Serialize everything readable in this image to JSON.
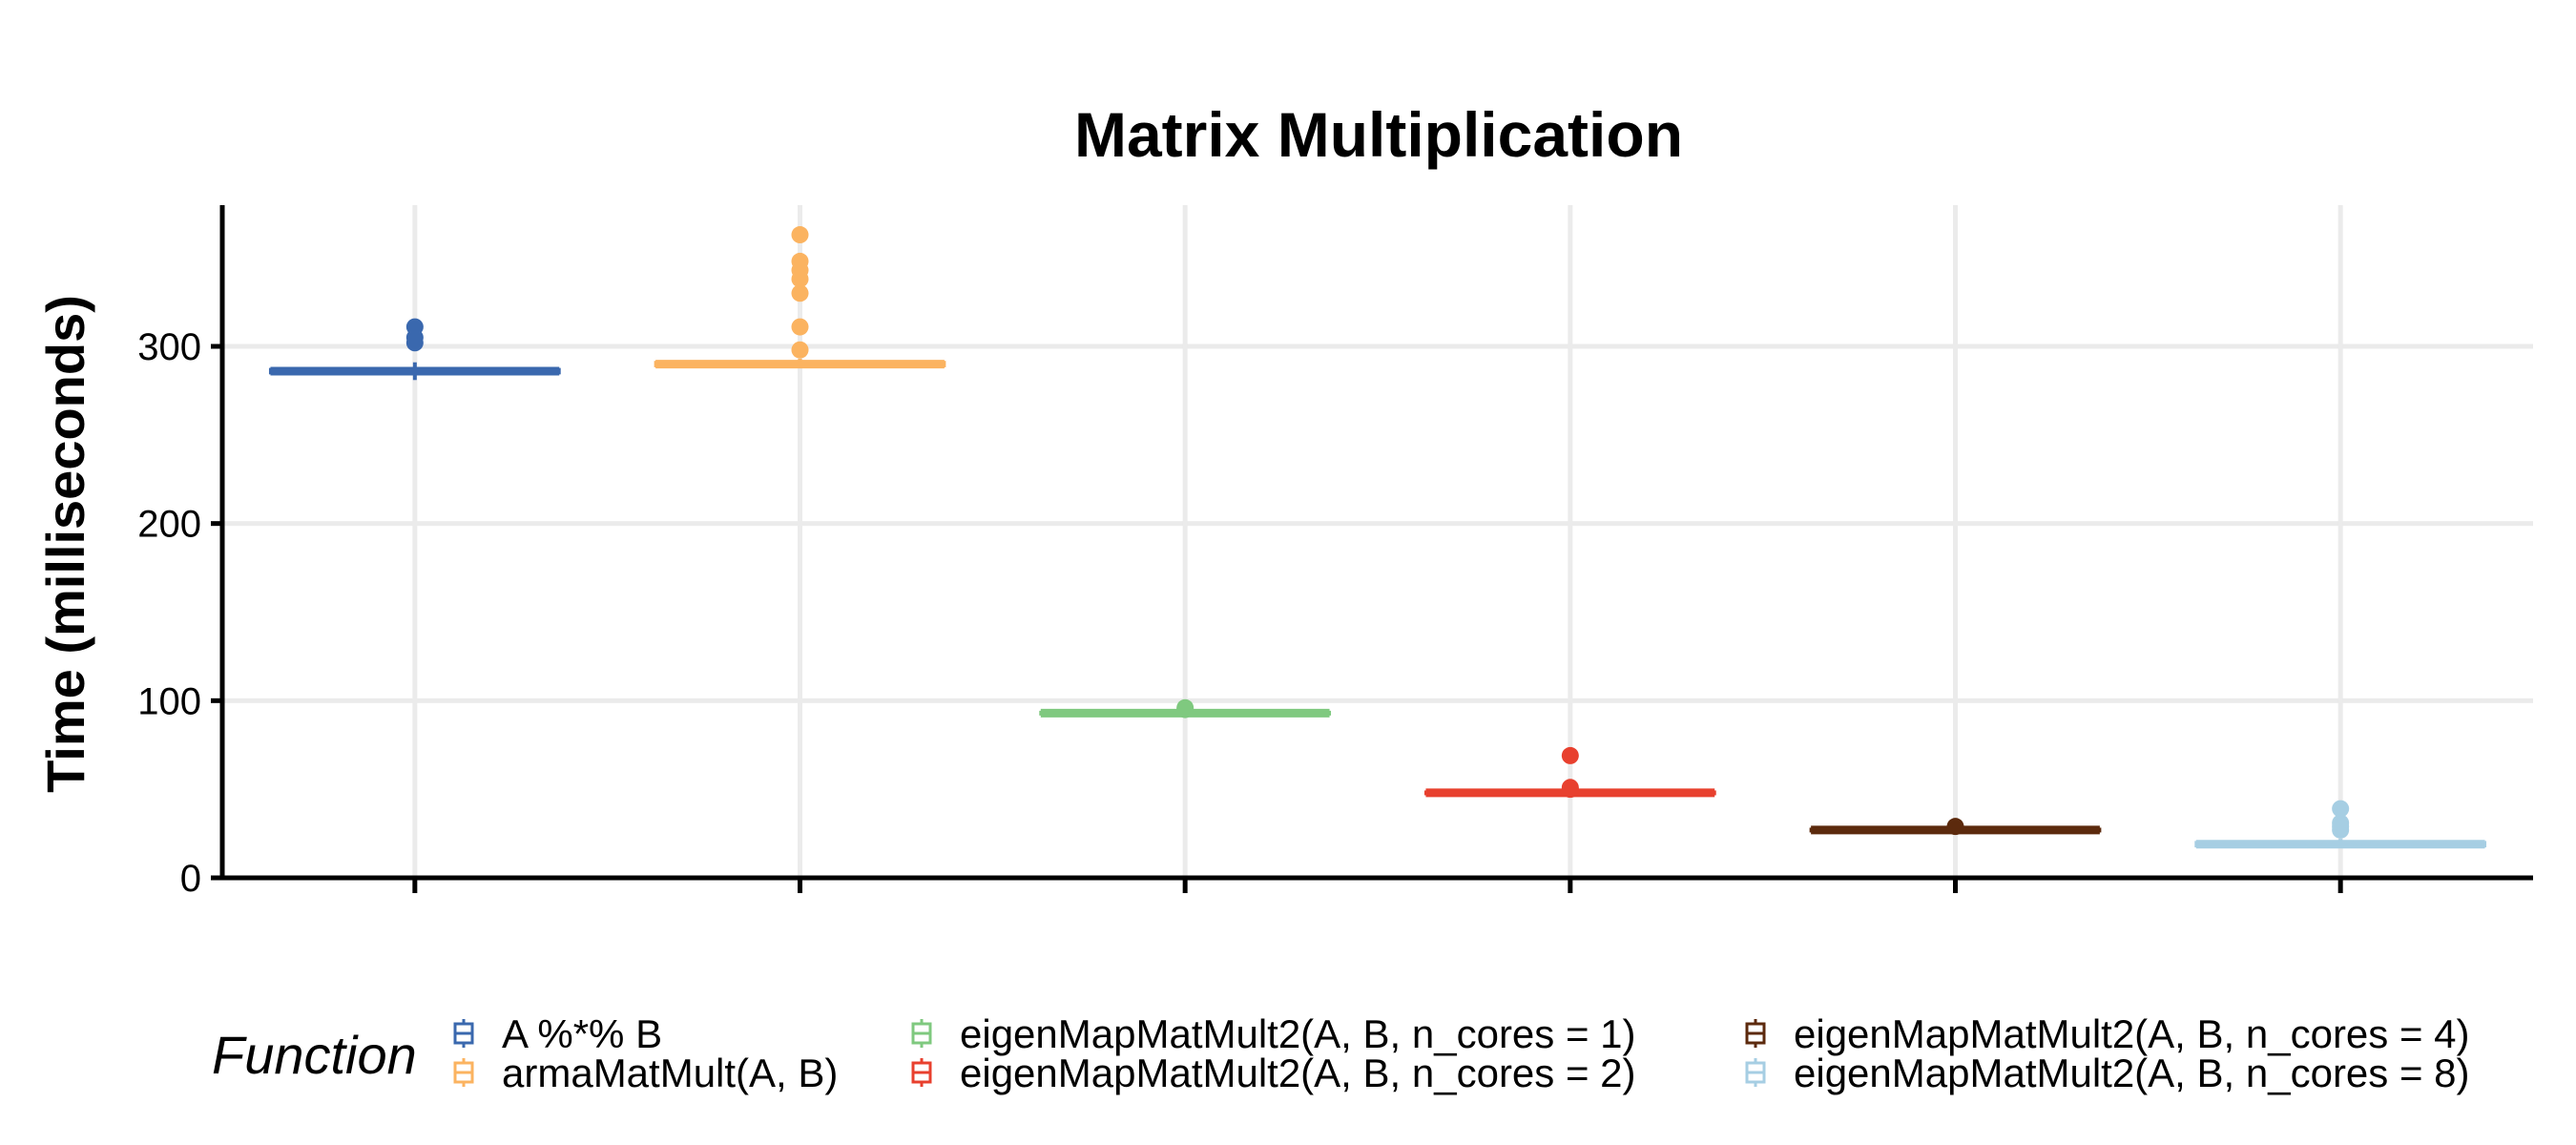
{
  "chart_data": {
    "type": "boxplot",
    "title": "Matrix Multiplication",
    "ylabel": "Time (milliseconds)",
    "xlabel": "",
    "ylim": [
      0,
      380
    ],
    "yticks": [
      0,
      100,
      200,
      300
    ],
    "grid": true,
    "legend": {
      "title": "Function",
      "position": "bottom"
    },
    "series": [
      {
        "name": "A %*% B",
        "color": "#3a68ae",
        "median": 286,
        "q1": 285,
        "q3": 287,
        "whisker_low": 281,
        "whisker_high": 291,
        "outliers": [
          302,
          305,
          311
        ]
      },
      {
        "name": "armaMatMult(A, B)",
        "color": "#fbb360",
        "median": 290,
        "q1": 289,
        "q3": 291,
        "whisker_low": 288,
        "whisker_high": 293,
        "outliers": [
          298,
          311,
          330,
          338,
          343,
          348,
          363
        ]
      },
      {
        "name": "eigenMapMatMult2(A, B, n_cores = 1)",
        "color": "#7fc97f",
        "median": 93,
        "q1": 92.5,
        "q3": 93.5,
        "whisker_low": 92,
        "whisker_high": 94,
        "outliers": [
          95,
          96
        ]
      },
      {
        "name": "eigenMapMatMult2(A, B, n_cores = 2)",
        "color": "#e8402e",
        "median": 48,
        "q1": 47.5,
        "q3": 48.5,
        "whisker_low": 47,
        "whisker_high": 49,
        "outliers": [
          50,
          51,
          69
        ]
      },
      {
        "name": "eigenMapMatMult2(A, B, n_cores = 4)",
        "color": "#5c2a0d",
        "median": 27,
        "q1": 26.5,
        "q3": 27.5,
        "whisker_low": 26,
        "whisker_high": 28,
        "outliers": [
          29
        ]
      },
      {
        "name": "eigenMapMatMult2(A, B, n_cores = 8)",
        "color": "#a6cee3",
        "median": 19,
        "q1": 18,
        "q3": 20,
        "whisker_low": 17,
        "whisker_high": 22,
        "outliers": [
          27,
          29,
          31,
          39
        ]
      }
    ]
  }
}
